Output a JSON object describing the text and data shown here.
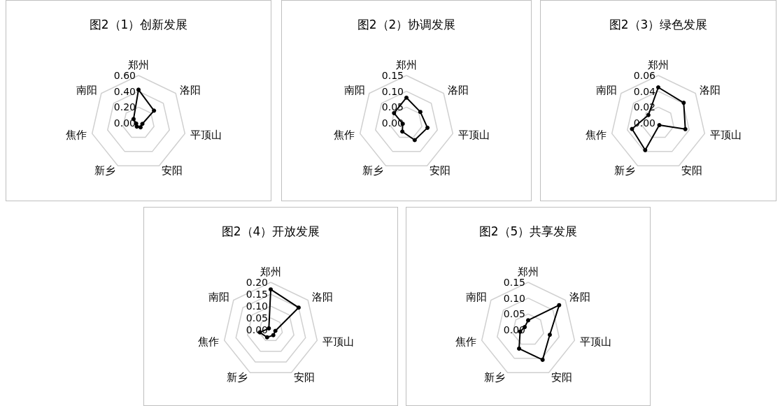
{
  "chart_data": [
    {
      "type": "radar",
      "title": "图2（1）创新发展",
      "categories": [
        "郑州",
        "洛阳",
        "平顶山",
        "安阳",
        "新乡",
        "焦作",
        "南阳"
      ],
      "ylim": [
        0,
        0.6
      ],
      "yticks": [
        {
          "value": 0,
          "label": "0.00"
        },
        {
          "value": 0.2,
          "label": "0.20"
        },
        {
          "value": 0.4,
          "label": "0.40"
        },
        {
          "value": 0.6,
          "label": "0.60"
        }
      ],
      "grid": true,
      "marker": "circle",
      "series": [
        {
          "color": "#000000",
          "values": [
            0.42,
            0.25,
            0.05,
            0.06,
            0.05,
            0.03,
            0.08
          ]
        }
      ]
    },
    {
      "type": "radar",
      "title": "图2（2）协调发展",
      "categories": [
        "郑州",
        "洛阳",
        "平顶山",
        "安阳",
        "新乡",
        "焦作",
        "南阳"
      ],
      "ylim": [
        0,
        0.15
      ],
      "yticks": [
        {
          "value": 0,
          "label": "0.00"
        },
        0.05,
        {
          "value": 0.1,
          "label": "0.10"
        },
        0.15
      ],
      "grid": true,
      "marker": "circle",
      "series": [
        {
          "color": "#000000",
          "values": [
            0.08,
            0.056,
            0.068,
            0.06,
            0.03,
            0.012,
            0.05
          ]
        }
      ]
    },
    {
      "type": "radar",
      "title": "图2（3）绿色发展",
      "categories": [
        "郑州",
        "洛阳",
        "平顶山",
        "安阳",
        "新乡",
        "焦作",
        "南阳"
      ],
      "ylim": [
        0,
        0.06
      ],
      "yticks": [
        {
          "value": 0,
          "label": "0.00"
        },
        0.02,
        0.04,
        0.06
      ],
      "grid": true,
      "marker": "circle",
      "series": [
        {
          "color": "#000000",
          "values": [
            0.045,
            0.041,
            0.035,
            0.003,
            0.038,
            0.034,
            0.016
          ]
        }
      ]
    },
    {
      "type": "radar",
      "title": "图2（4）开放发展",
      "categories": [
        "郑州",
        "洛阳",
        "平顶山",
        "安阳",
        "新乡",
        "焦作",
        "南阳"
      ],
      "ylim": [
        0,
        0.2
      ],
      "yticks": [
        {
          "value": 0,
          "label": "0.00"
        },
        0.05,
        {
          "value": 0.1,
          "label": "0.10"
        },
        0.15,
        {
          "value": 0.2,
          "label": "0.20"
        }
      ],
      "grid": true,
      "marker": "circle",
      "series": [
        {
          "color": "#000000",
          "values": [
            0.17,
            0.15,
            0.02,
            0.025,
            0.035,
            0.047,
            0.01
          ]
        }
      ]
    },
    {
      "type": "radar",
      "title": "图2（5）共享发展",
      "categories": [
        "郑州",
        "洛阳",
        "平顶山",
        "安阳",
        "新乡",
        "焦作",
        "南阳"
      ],
      "ylim": [
        0,
        0.15
      ],
      "yticks": [
        {
          "value": 0,
          "label": "0.00"
        },
        0.05,
        {
          "value": 0.1,
          "label": "0.10"
        },
        0.15
      ],
      "grid": true,
      "marker": "circle",
      "series": [
        {
          "color": "#000000",
          "values": [
            0.03,
            0.125,
            0.07,
            0.105,
            0.066,
            0.026,
            0.014
          ]
        }
      ]
    }
  ]
}
